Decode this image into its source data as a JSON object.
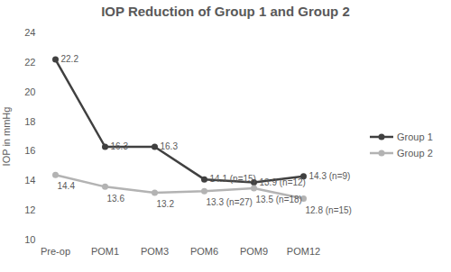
{
  "chart_data": {
    "type": "line",
    "title": "IOP Reduction of Group 1 and Group 2",
    "y_label": "IOP in mmHg",
    "categories": [
      "Pre-op",
      "POM1",
      "POM3",
      "POM6",
      "POM9",
      "POM12"
    ],
    "series": [
      {
        "name": "Group 1",
        "color": "#404040",
        "marker": "circle",
        "values": [
          22.2,
          16.3,
          16.3,
          14.1,
          13.9,
          14.3
        ],
        "value_labels": [
          "22.2",
          "16.3",
          "16.3",
          "14.1 (n=15)",
          "13.9 (n=12)",
          "14.3 (n=9)"
        ]
      },
      {
        "name": "Group 2",
        "color": "#b3b3b3",
        "marker": "circle",
        "values": [
          14.4,
          13.6,
          13.2,
          13.3,
          13.5,
          12.8
        ],
        "value_labels": [
          "14.4",
          "13.6",
          "13.2",
          "13.3 (n=27)",
          "13.5 (n=18)",
          "12.8 (n=15)"
        ]
      }
    ],
    "ylim": [
      10,
      24
    ],
    "yticks": [
      10,
      12,
      14,
      16,
      18,
      20,
      22,
      24
    ],
    "grid": false,
    "legend": "right",
    "data_labels": true
  }
}
